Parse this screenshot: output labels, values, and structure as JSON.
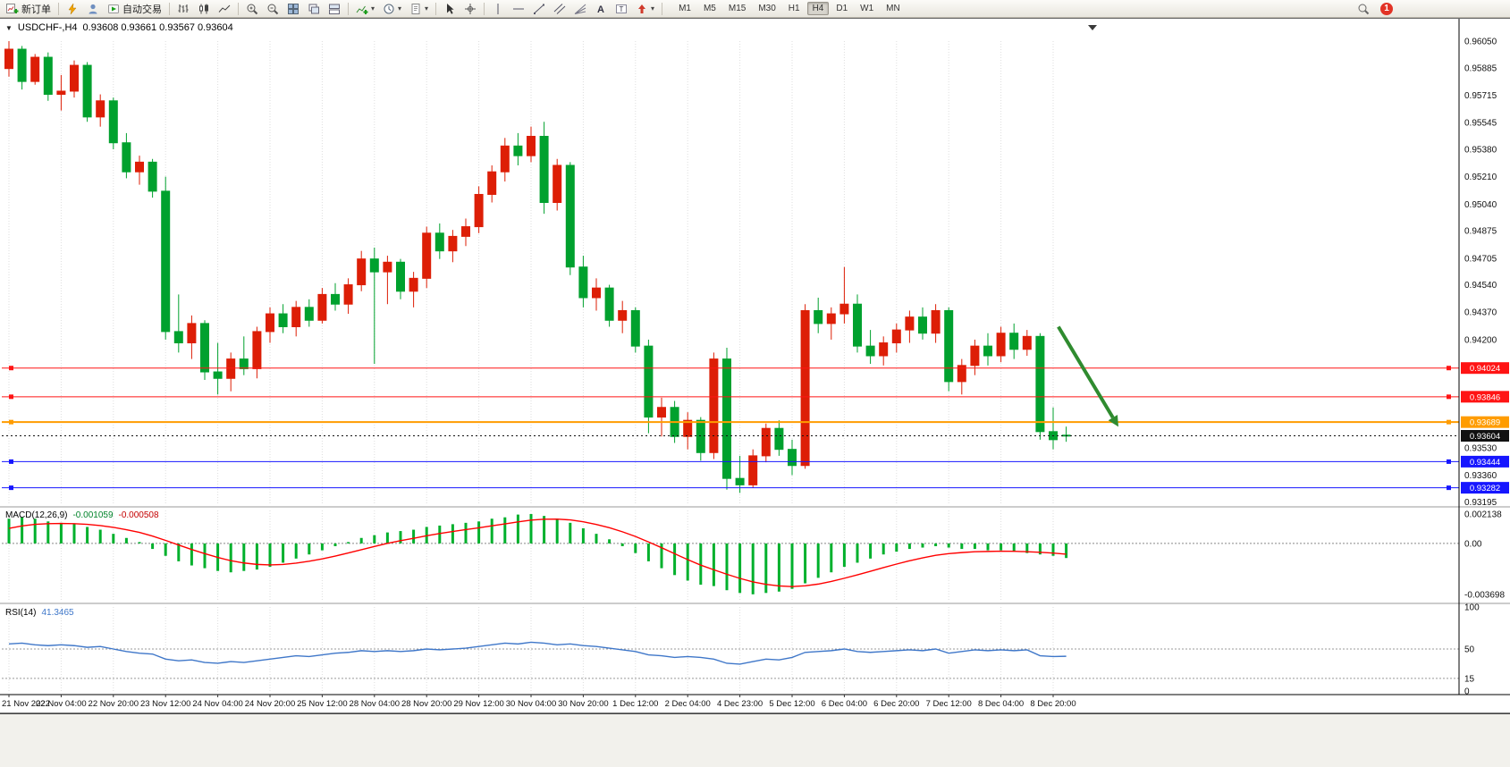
{
  "toolbar": {
    "new_order": "新订单",
    "auto_trading": "自动交易",
    "timeframes": [
      "M1",
      "M5",
      "M15",
      "M30",
      "H1",
      "H4",
      "D1",
      "W1",
      "MN"
    ],
    "active_timeframe": "H4",
    "notification_count": "1"
  },
  "chart": {
    "symbol": "USDCHF-,H4",
    "ohlc": "0.93608 0.93661 0.93567 0.93604",
    "price_axis_labels": [
      "0.96050",
      "0.95885",
      "0.95715",
      "0.95545",
      "0.95380",
      "0.95210",
      "0.95040",
      "0.94875",
      "0.94705",
      "0.94540",
      "0.94370",
      "0.94200",
      "0.93530",
      "0.93360",
      "0.93195"
    ],
    "levels": [
      {
        "name": "resistance-line-1",
        "price": 0.94024,
        "label": "0.94024",
        "color": "#ff1414",
        "width": 1
      },
      {
        "name": "resistance-line-2",
        "price": 0.93846,
        "label": "0.93846",
        "color": "#ff1414",
        "width": 1
      },
      {
        "name": "pivot-line",
        "price": 0.93689,
        "label": "0.93689",
        "color": "#ff9c00",
        "width": 2
      },
      {
        "name": "support-line-1",
        "price": 0.93444,
        "label": "0.93444",
        "color": "#1616ff",
        "width": 1
      },
      {
        "name": "support-line-2",
        "price": 0.93282,
        "label": "0.93282",
        "color": "#1616ff",
        "width": 1
      }
    ],
    "current_price": {
      "value": 0.93604,
      "label": "0.93604"
    },
    "time_axis_labels": [
      "21 Nov 2022",
      "22 Nov 04:00",
      "22 Nov 20:00",
      "23 Nov 12:00",
      "24 Nov 04:00",
      "24 Nov 20:00",
      "25 Nov 12:00",
      "28 Nov 04:00",
      "28 Nov 20:00",
      "29 Nov 12:00",
      "30 Nov 04:00",
      "30 Nov 20:00",
      "1 Dec 12:00",
      "2 Dec 04:00",
      "4 Dec 23:00",
      "5 Dec 12:00",
      "6 Dec 04:00",
      "6 Dec 20:00",
      "7 Dec 12:00",
      "8 Dec 04:00",
      "8 Dec 20:00"
    ]
  },
  "macd": {
    "title": "MACD(12,26,9)",
    "hist_value": "-0.001059",
    "signal_value": "-0.000508",
    "axis_labels": [
      "0.002138",
      "0.00",
      "-0.003698"
    ],
    "axis_values": [
      0.002138,
      0,
      -0.003698
    ]
  },
  "rsi": {
    "title": "RSI(14)",
    "value": "41.3465",
    "axis_labels": [
      "100",
      "50",
      "15",
      "0"
    ],
    "axis_values": [
      100,
      50,
      15,
      0
    ],
    "level_lines": [
      50,
      15
    ]
  },
  "colors": {
    "bull": "#dd1e06",
    "bear": "#00a12e",
    "macd_hist": "#00b02c",
    "macd_signal": "#ff0000",
    "rsi_line": "#3f77c9",
    "current_price_bg": "#111111",
    "arrow": "#2f8b2f",
    "grid": "#dedede"
  },
  "annotation_arrow": {
    "from_candle": 80.4,
    "from_price": 0.9428,
    "to_candle": 85.0,
    "to_price": 0.9366,
    "color": "#2f8b2f"
  },
  "chart_data": {
    "type": "candlestick",
    "symbol": "USDCHF",
    "timeframe": "H4",
    "color_convention": "red = bullish, green = bearish (CN convention)",
    "price_range": [
      0.93195,
      0.9605
    ],
    "candles": [
      [
        0.9588,
        0.9605,
        0.9583,
        0.96
      ],
      [
        0.96,
        0.9602,
        0.9575,
        0.958
      ],
      [
        0.958,
        0.9597,
        0.9578,
        0.9595
      ],
      [
        0.9595,
        0.9598,
        0.9568,
        0.9572
      ],
      [
        0.9572,
        0.9584,
        0.9562,
        0.9574
      ],
      [
        0.9574,
        0.9593,
        0.957,
        0.959
      ],
      [
        0.959,
        0.9592,
        0.9555,
        0.9558
      ],
      [
        0.9558,
        0.9572,
        0.9552,
        0.9568
      ],
      [
        0.9568,
        0.957,
        0.9538,
        0.9542
      ],
      [
        0.9542,
        0.9548,
        0.952,
        0.9524
      ],
      [
        0.9524,
        0.9534,
        0.9516,
        0.953
      ],
      [
        0.953,
        0.9532,
        0.9508,
        0.9512
      ],
      [
        0.9512,
        0.9521,
        0.942,
        0.9425
      ],
      [
        0.9425,
        0.9448,
        0.9412,
        0.9418
      ],
      [
        0.9418,
        0.9435,
        0.9408,
        0.943
      ],
      [
        0.943,
        0.9432,
        0.9395,
        0.94
      ],
      [
        0.94,
        0.9418,
        0.9386,
        0.9396
      ],
      [
        0.9396,
        0.9412,
        0.9388,
        0.9408
      ],
      [
        0.9408,
        0.9422,
        0.9398,
        0.9402
      ],
      [
        0.9402,
        0.9428,
        0.9396,
        0.9425
      ],
      [
        0.9425,
        0.944,
        0.9418,
        0.9436
      ],
      [
        0.9436,
        0.9442,
        0.9424,
        0.9428
      ],
      [
        0.9428,
        0.9444,
        0.9422,
        0.944
      ],
      [
        0.944,
        0.9445,
        0.9428,
        0.9432
      ],
      [
        0.9432,
        0.9452,
        0.943,
        0.9448
      ],
      [
        0.9448,
        0.9455,
        0.9438,
        0.9442
      ],
      [
        0.9442,
        0.9458,
        0.9436,
        0.9454
      ],
      [
        0.9454,
        0.9475,
        0.945,
        0.947
      ],
      [
        0.947,
        0.9477,
        0.9405,
        0.9462
      ],
      [
        0.9462,
        0.9472,
        0.9442,
        0.9468
      ],
      [
        0.9468,
        0.947,
        0.9445,
        0.945
      ],
      [
        0.945,
        0.9462,
        0.944,
        0.9458
      ],
      [
        0.9458,
        0.949,
        0.9452,
        0.9486
      ],
      [
        0.9486,
        0.9492,
        0.947,
        0.9475
      ],
      [
        0.9475,
        0.9488,
        0.9468,
        0.9484
      ],
      [
        0.9484,
        0.9495,
        0.9478,
        0.949
      ],
      [
        0.949,
        0.9515,
        0.9486,
        0.951
      ],
      [
        0.951,
        0.9528,
        0.9505,
        0.9524
      ],
      [
        0.9524,
        0.9545,
        0.9518,
        0.954
      ],
      [
        0.954,
        0.9548,
        0.9528,
        0.9534
      ],
      [
        0.9534,
        0.9552,
        0.953,
        0.9546
      ],
      [
        0.9546,
        0.9555,
        0.9498,
        0.9505
      ],
      [
        0.9505,
        0.9532,
        0.95,
        0.9528
      ],
      [
        0.9528,
        0.953,
        0.946,
        0.9465
      ],
      [
        0.9465,
        0.9472,
        0.944,
        0.9446
      ],
      [
        0.9446,
        0.9458,
        0.9438,
        0.9452
      ],
      [
        0.9452,
        0.9454,
        0.9428,
        0.9432
      ],
      [
        0.9432,
        0.9444,
        0.9424,
        0.9438
      ],
      [
        0.9438,
        0.944,
        0.9412,
        0.9416
      ],
      [
        0.9416,
        0.942,
        0.9362,
        0.9372
      ],
      [
        0.9372,
        0.9384,
        0.936,
        0.9378
      ],
      [
        0.9378,
        0.9382,
        0.9356,
        0.936
      ],
      [
        0.936,
        0.9375,
        0.9352,
        0.937
      ],
      [
        0.937,
        0.9372,
        0.9345,
        0.935
      ],
      [
        0.935,
        0.9412,
        0.9346,
        0.9408
      ],
      [
        0.9408,
        0.9415,
        0.9327,
        0.9334
      ],
      [
        0.9334,
        0.9348,
        0.9325,
        0.933
      ],
      [
        0.933,
        0.9352,
        0.9328,
        0.9348
      ],
      [
        0.9348,
        0.9368,
        0.9344,
        0.9365
      ],
      [
        0.9365,
        0.937,
        0.9348,
        0.9352
      ],
      [
        0.9352,
        0.9358,
        0.9336,
        0.9342
      ],
      [
        0.9342,
        0.9442,
        0.934,
        0.9438
      ],
      [
        0.9438,
        0.9446,
        0.9424,
        0.943
      ],
      [
        0.943,
        0.944,
        0.942,
        0.9436
      ],
      [
        0.9436,
        0.9465,
        0.943,
        0.9442
      ],
      [
        0.9442,
        0.9448,
        0.9412,
        0.9416
      ],
      [
        0.9416,
        0.9426,
        0.9405,
        0.941
      ],
      [
        0.941,
        0.9422,
        0.9404,
        0.9418
      ],
      [
        0.9418,
        0.943,
        0.9412,
        0.9426
      ],
      [
        0.9426,
        0.9438,
        0.9418,
        0.9434
      ],
      [
        0.9434,
        0.944,
        0.942,
        0.9424
      ],
      [
        0.9424,
        0.9442,
        0.9418,
        0.9438
      ],
      [
        0.9438,
        0.944,
        0.9388,
        0.9394
      ],
      [
        0.9394,
        0.9408,
        0.9386,
        0.9404
      ],
      [
        0.9404,
        0.942,
        0.9398,
        0.9416
      ],
      [
        0.9416,
        0.9424,
        0.9404,
        0.941
      ],
      [
        0.941,
        0.9428,
        0.9406,
        0.9424
      ],
      [
        0.9424,
        0.943,
        0.9408,
        0.9414
      ],
      [
        0.9414,
        0.9426,
        0.941,
        0.9422
      ],
      [
        0.9422,
        0.9424,
        0.9358,
        0.9363
      ],
      [
        0.9363,
        0.9378,
        0.9352,
        0.9358
      ],
      [
        0.93608,
        0.93661,
        0.93567,
        0.93604
      ]
    ],
    "macd_histogram": [
      0.0018,
      0.0019,
      0.0018,
      0.0016,
      0.0015,
      0.0014,
      0.0012,
      0.001,
      0.0007,
      0.0004,
      0.0001,
      -0.0004,
      -0.0009,
      -0.0013,
      -0.0016,
      -0.0018,
      -0.002,
      -0.0021,
      -0.002,
      -0.0019,
      -0.0017,
      -0.0014,
      -0.0011,
      -0.0008,
      -0.0005,
      -0.0002,
      0.0001,
      0.0004,
      0.0006,
      0.0008,
      0.0009,
      0.001,
      0.0012,
      0.0013,
      0.0014,
      0.0015,
      0.0016,
      0.0018,
      0.0019,
      0.0021,
      0.002138,
      0.002,
      0.0018,
      0.0015,
      0.0011,
      0.0007,
      0.0003,
      -0.0002,
      -0.0007,
      -0.0013,
      -0.0018,
      -0.0023,
      -0.0027,
      -0.003,
      -0.0031,
      -0.0034,
      -0.0036,
      -0.003698,
      -0.0036,
      -0.0035,
      -0.0033,
      -0.0029,
      -0.0025,
      -0.0021,
      -0.0017,
      -0.0014,
      -0.0011,
      -0.0008,
      -0.0006,
      -0.0004,
      -0.0003,
      -0.0002,
      -0.0003,
      -0.0004,
      -0.0004,
      -0.0005,
      -0.0005,
      -0.0006,
      -0.0007,
      -0.0008,
      -0.0009,
      -0.001059
    ],
    "rsi_values": [
      56,
      57,
      55,
      54,
      55,
      54,
      52,
      53,
      50,
      47,
      45,
      44,
      38,
      36,
      37,
      34,
      33,
      35,
      34,
      36,
      38,
      40,
      42,
      41,
      43,
      45,
      46,
      48,
      47,
      48,
      47,
      48,
      50,
      49,
      50,
      51,
      53,
      55,
      57,
      56,
      58,
      57,
      55,
      56,
      54,
      53,
      51,
      49,
      47,
      43,
      42,
      40,
      41,
      40,
      38,
      33,
      32,
      35,
      38,
      37,
      40,
      46,
      47,
      48,
      50,
      47,
      46,
      47,
      48,
      49,
      48,
      50,
      45,
      47,
      49,
      48,
      49,
      48,
      49,
      42,
      41,
      41.3465
    ]
  }
}
